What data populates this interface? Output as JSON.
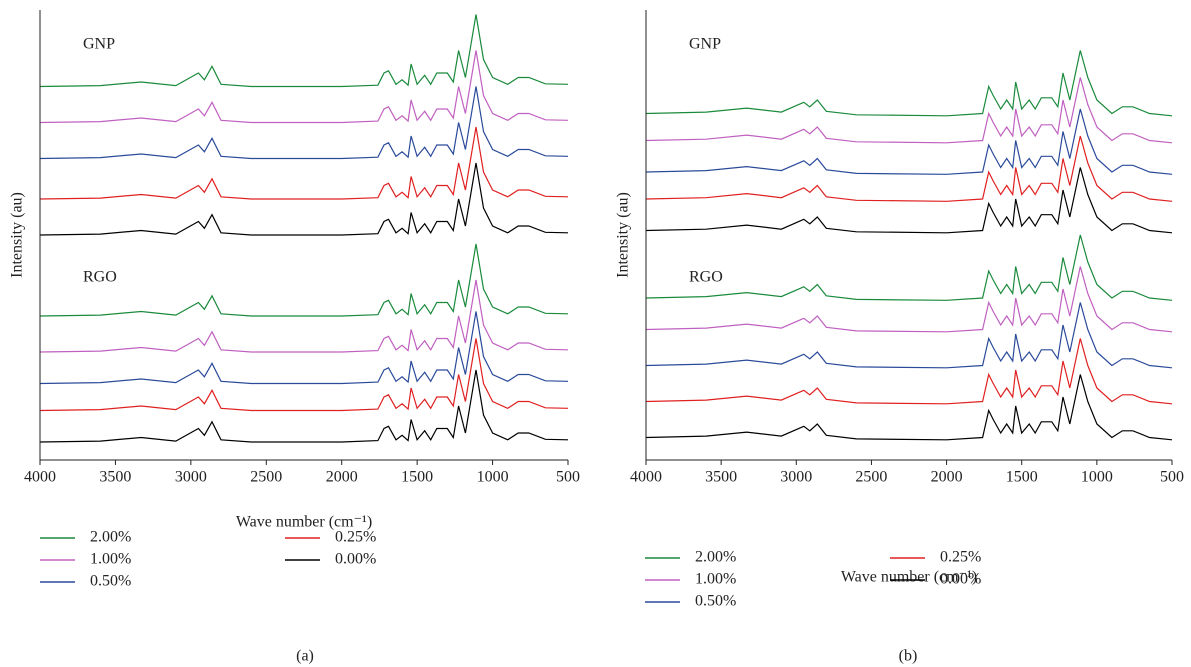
{
  "chart_data": [
    {
      "type": "line",
      "caption": "(a)",
      "xlabel": "Wave number (cm⁻¹)",
      "ylabel": "Intensity (au)",
      "annotations": [
        "GNP",
        "RGO"
      ],
      "xlim": [
        4000,
        500
      ],
      "xticks": [
        4000,
        3500,
        3000,
        2500,
        2000,
        1500,
        1000,
        500
      ],
      "ylim": [
        0,
        100
      ],
      "x": [
        4000,
        3600,
        3330,
        3100,
        2950,
        2910,
        2860,
        2800,
        2600,
        2000,
        1760,
        1720,
        1690,
        1640,
        1600,
        1560,
        1540,
        1500,
        1450,
        1410,
        1370,
        1300,
        1260,
        1225,
        1180,
        1110,
        1060,
        1000,
        900,
        830,
        760,
        650,
        500
      ],
      "series": [
        {
          "name": "2.00%",
          "color": "#1a8a3c",
          "values": [
            83,
            83.2,
            84,
            83.2,
            86,
            84.5,
            87.5,
            83.5,
            83,
            83,
            83.3,
            86,
            86.5,
            83.5,
            84.5,
            83.3,
            88,
            83.5,
            85.5,
            83.5,
            86,
            86,
            84,
            91,
            85,
            99,
            89,
            85,
            83.5,
            85,
            85,
            83.6,
            83.5
          ]
        },
        {
          "name": "1.00%",
          "color": "#c060c0",
          "values": [
            75,
            75.2,
            76,
            75.2,
            78,
            76.5,
            79.5,
            75.5,
            75,
            75,
            75.3,
            78,
            78.5,
            75.5,
            76.5,
            75.3,
            80,
            75.5,
            77.5,
            75.5,
            78,
            78,
            76,
            83,
            77,
            91,
            81,
            77,
            75.5,
            77,
            77,
            75.6,
            75.5
          ]
        },
        {
          "name": "0.50%",
          "color": "#2a4a9a",
          "values": [
            67,
            67.2,
            68,
            67.2,
            70,
            68.5,
            71.5,
            67.5,
            67,
            67,
            67.3,
            70,
            70.5,
            67.5,
            68.5,
            67.3,
            72,
            67.5,
            69.5,
            67.5,
            70,
            70,
            68,
            75,
            69,
            83,
            73,
            69,
            67.5,
            69,
            69,
            67.6,
            67.5
          ]
        },
        {
          "name": "0.25%",
          "color": "#e02020",
          "values": [
            58,
            58.2,
            59,
            58.2,
            61,
            59.5,
            62.5,
            58.5,
            58,
            58,
            58.3,
            61,
            61.5,
            58.5,
            59.5,
            58.3,
            63,
            58.5,
            60.5,
            58.5,
            61,
            61,
            59,
            66,
            60,
            74,
            64,
            60,
            58.5,
            60,
            60,
            58.6,
            58.5
          ]
        },
        {
          "name": "0.00%",
          "color": "#000000",
          "values": [
            50,
            50.2,
            51,
            50.2,
            53,
            51.5,
            54.5,
            50.5,
            50,
            50,
            50.3,
            53,
            53.5,
            50.5,
            51.5,
            50.3,
            55,
            50.5,
            52.5,
            50.5,
            53,
            53,
            51,
            58,
            52,
            66,
            56,
            52,
            50.5,
            52,
            52,
            50.6,
            50.5
          ]
        },
        {
          "name": "2.00%",
          "color": "#1a8a3c",
          "values": [
            32,
            32.2,
            33,
            32.2,
            35,
            33.5,
            36.5,
            32.5,
            32,
            32,
            32.3,
            35,
            35.5,
            32.5,
            33.5,
            32.3,
            37,
            32.5,
            34.5,
            32.5,
            35,
            35,
            33,
            40,
            34,
            48,
            38,
            34,
            32.5,
            34,
            34,
            32.6,
            32.5
          ]
        },
        {
          "name": "1.00%",
          "color": "#c060c0",
          "values": [
            24,
            24.2,
            25,
            24.2,
            27,
            25.5,
            28.5,
            24.5,
            24,
            24,
            24.3,
            27,
            27.5,
            24.5,
            25.5,
            24.3,
            29,
            24.5,
            26.5,
            24.5,
            27,
            27,
            25,
            32,
            26,
            40,
            30,
            26,
            24.5,
            26,
            26,
            24.6,
            24.5
          ]
        },
        {
          "name": "0.50%",
          "color": "#2a4a9a",
          "values": [
            17,
            17.2,
            18,
            17.2,
            20,
            18.5,
            21.5,
            17.5,
            17,
            17,
            17.3,
            20,
            20.5,
            17.5,
            18.5,
            17.3,
            22,
            17.5,
            19.5,
            17.5,
            20,
            20,
            18,
            25,
            19,
            33,
            23,
            19,
            17.5,
            19,
            19,
            17.6,
            17.5
          ]
        },
        {
          "name": "0.25%",
          "color": "#e02020",
          "values": [
            11,
            11.2,
            12,
            11.2,
            14,
            12.5,
            15.5,
            11.5,
            11,
            11,
            11.3,
            14,
            14.5,
            11.5,
            12.5,
            11.3,
            16,
            11.5,
            13.5,
            11.5,
            14,
            14,
            12,
            19,
            13,
            27,
            17,
            13,
            11.5,
            13,
            13,
            11.6,
            11.5
          ]
        },
        {
          "name": "0.00%",
          "color": "#000000",
          "values": [
            4,
            4.2,
            5,
            4.2,
            7,
            5.5,
            8.5,
            4.5,
            4,
            4,
            4.3,
            7,
            7.5,
            4.5,
            5.5,
            4.3,
            9,
            4.5,
            6.5,
            4.5,
            7,
            7,
            5,
            12,
            6,
            20,
            10,
            6,
            4.5,
            6,
            6,
            4.6,
            4.5
          ]
        }
      ]
    },
    {
      "type": "line",
      "caption": "(b)",
      "xlabel": "Wave number (cm⁻¹)",
      "ylabel": "Intensity (au)",
      "annotations": [
        "GNP",
        "RGO"
      ],
      "xlim": [
        4000,
        500
      ],
      "xticks": [
        4000,
        3500,
        3000,
        2500,
        2000,
        1500,
        1000,
        500
      ],
      "ylim": [
        0,
        100
      ],
      "x": [
        4000,
        3600,
        3330,
        3100,
        2950,
        2910,
        2860,
        2800,
        2600,
        2000,
        1760,
        1720,
        1690,
        1640,
        1600,
        1560,
        1540,
        1500,
        1450,
        1410,
        1370,
        1300,
        1260,
        1225,
        1180,
        1110,
        1060,
        1000,
        900,
        830,
        760,
        650,
        500
      ],
      "series": [
        {
          "name": "2.00%",
          "color": "#1a8a3c",
          "values": [
            77,
            77.3,
            78.2,
            77.3,
            79.5,
            78.5,
            80,
            77.5,
            76.7,
            76.5,
            77,
            83,
            81,
            78,
            80,
            78,
            84,
            78,
            80,
            78,
            80.5,
            80.5,
            78.5,
            86,
            80,
            91,
            85,
            80,
            77,
            78.5,
            78.5,
            77,
            76.5
          ]
        },
        {
          "name": "1.00%",
          "color": "#c060c0",
          "values": [
            71,
            71.3,
            72.2,
            71.3,
            73.5,
            72.5,
            74,
            71.5,
            70.7,
            70.5,
            71,
            77,
            75,
            72,
            74,
            72,
            78,
            72,
            74,
            72,
            74.5,
            74.5,
            72.5,
            80,
            74,
            85,
            79,
            74,
            71,
            72.5,
            72.5,
            71,
            70.5
          ]
        },
        {
          "name": "0.50%",
          "color": "#2a4a9a",
          "values": [
            64,
            64.3,
            65.2,
            64.3,
            66.5,
            65.5,
            67,
            64.5,
            63.7,
            63.5,
            64,
            70,
            68,
            65,
            67,
            65,
            71,
            65,
            67,
            65,
            67.5,
            67.5,
            65.5,
            73,
            67,
            78,
            72,
            67,
            64,
            65.5,
            65.5,
            64,
            63.5
          ]
        },
        {
          "name": "0.25%",
          "color": "#e02020",
          "values": [
            58,
            58.3,
            59.2,
            58.3,
            60.5,
            59.5,
            61,
            58.5,
            57.7,
            57.5,
            58,
            64,
            62,
            59,
            61,
            59,
            65,
            59,
            61,
            59,
            61.5,
            61.5,
            59.5,
            67,
            61,
            72,
            66,
            61,
            58,
            59.5,
            59.5,
            58,
            57.5
          ]
        },
        {
          "name": "0.00%",
          "color": "#000000",
          "values": [
            51,
            51.3,
            52.2,
            51.3,
            53.5,
            52.5,
            54,
            51.5,
            50.7,
            50.5,
            51,
            57,
            55,
            52,
            54,
            52,
            58,
            52,
            54,
            52,
            54.5,
            54.5,
            52.5,
            60,
            54,
            65,
            59,
            54,
            51,
            52.5,
            52.5,
            51,
            50.5
          ]
        },
        {
          "name": "2.00%",
          "color": "#1a8a3c",
          "values": [
            36,
            36.3,
            37.2,
            36.3,
            38.5,
            37.5,
            39,
            36.5,
            35.7,
            35.5,
            36,
            42,
            40,
            37,
            39,
            37,
            43,
            37,
            39,
            37,
            39.5,
            39.5,
            37.5,
            45,
            39,
            50,
            44,
            39,
            36,
            37.5,
            37.5,
            36,
            35.5
          ]
        },
        {
          "name": "1.00%",
          "color": "#c060c0",
          "values": [
            29,
            29.3,
            30.2,
            29.3,
            31.5,
            30.5,
            32,
            29.5,
            28.7,
            28.5,
            29,
            35,
            33,
            30,
            32,
            30,
            36,
            30,
            32,
            30,
            32.5,
            32.5,
            30.5,
            38,
            32,
            43,
            37,
            32,
            29,
            30.5,
            30.5,
            29,
            28.5
          ]
        },
        {
          "name": "0.50%",
          "color": "#2a4a9a",
          "values": [
            21,
            21.3,
            22.2,
            21.3,
            23.5,
            22.5,
            24,
            21.5,
            20.7,
            20.5,
            21,
            27,
            25,
            22,
            24,
            22,
            28,
            22,
            24,
            22,
            24.5,
            24.5,
            22.5,
            30,
            24,
            35,
            29,
            24,
            21,
            22.5,
            22.5,
            21,
            20.5
          ]
        },
        {
          "name": "0.25%",
          "color": "#e02020",
          "values": [
            13,
            13.3,
            14.2,
            13.3,
            15.5,
            14.5,
            16,
            13.5,
            12.7,
            12.5,
            13,
            19,
            17,
            14,
            16,
            14,
            20,
            14,
            16,
            14,
            16.5,
            16.5,
            14.5,
            22,
            16,
            27,
            21,
            16,
            13,
            14.5,
            14.5,
            13,
            12.5
          ]
        },
        {
          "name": "0.00%",
          "color": "#000000",
          "values": [
            5,
            5.3,
            6.2,
            5.3,
            7.5,
            6.5,
            8,
            5.5,
            4.7,
            4.5,
            5,
            11,
            9,
            6,
            8,
            6,
            12,
            6,
            8,
            6,
            8.5,
            8.5,
            6.5,
            14,
            8,
            19,
            13,
            8,
            5,
            6.5,
            6.5,
            5,
            4.5
          ]
        }
      ]
    }
  ]
}
